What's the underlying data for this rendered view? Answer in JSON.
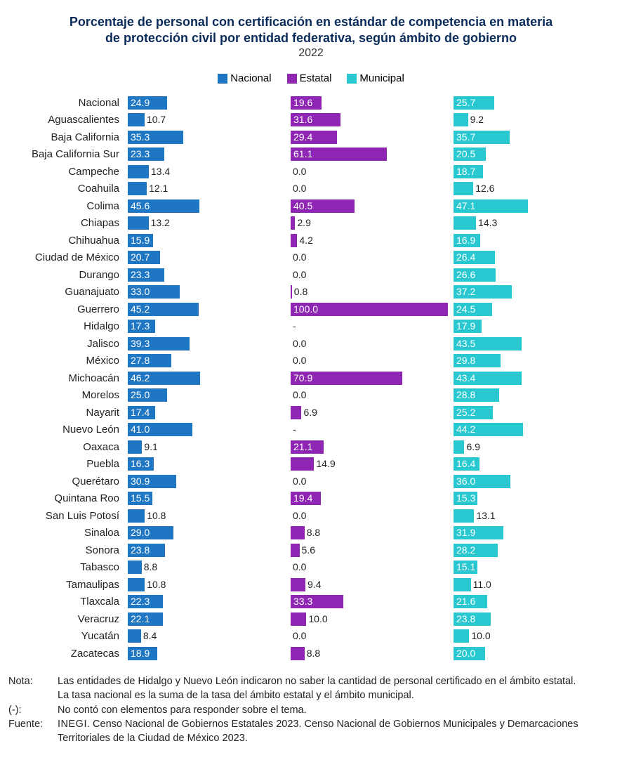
{
  "title_line1": "Porcentaje de personal con certificación en estándar de competencia en materia",
  "title_line2": "de protección civil por entidad federativa, según ámbito de gobierno",
  "year": "2022",
  "legend": {
    "nacional": "Nacional",
    "estatal": "Estatal",
    "municipal": "Municipal"
  },
  "colors": {
    "nacional": "#1f77c4",
    "estatal": "#8e26b3",
    "municipal": "#29c8d1",
    "text": "#222222",
    "title": "#0a2b5a",
    "background": "#ffffff"
  },
  "scale_max": 100,
  "label_inside_threshold": 15,
  "rows": [
    {
      "label": "Nacional",
      "nacional": 24.9,
      "estatal": 19.6,
      "municipal": 25.7
    },
    {
      "label": "Aguascalientes",
      "nacional": 10.7,
      "estatal": 31.6,
      "municipal": 9.2
    },
    {
      "label": "Baja California",
      "nacional": 35.3,
      "estatal": 29.4,
      "municipal": 35.7
    },
    {
      "label": "Baja California Sur",
      "nacional": 23.3,
      "estatal": 61.1,
      "municipal": 20.5
    },
    {
      "label": "Campeche",
      "nacional": 13.4,
      "estatal": 0.0,
      "municipal": 18.7
    },
    {
      "label": "Coahuila",
      "nacional": 12.1,
      "estatal": 0.0,
      "municipal": 12.6
    },
    {
      "label": "Colima",
      "nacional": 45.6,
      "estatal": 40.5,
      "municipal": 47.1
    },
    {
      "label": "Chiapas",
      "nacional": 13.2,
      "estatal": 2.9,
      "municipal": 14.3
    },
    {
      "label": "Chihuahua",
      "nacional": 15.9,
      "estatal": 4.2,
      "municipal": 16.9
    },
    {
      "label": "Ciudad de México",
      "nacional": 20.7,
      "estatal": 0.0,
      "municipal": 26.4
    },
    {
      "label": "Durango",
      "nacional": 23.3,
      "estatal": 0.0,
      "municipal": 26.6
    },
    {
      "label": "Guanajuato",
      "nacional": 33.0,
      "estatal": 0.8,
      "municipal": 37.2
    },
    {
      "label": "Guerrero",
      "nacional": 45.2,
      "estatal": 100.0,
      "municipal": 24.5
    },
    {
      "label": "Hidalgo",
      "nacional": 17.3,
      "estatal": null,
      "municipal": 17.9
    },
    {
      "label": "Jalisco",
      "nacional": 39.3,
      "estatal": 0.0,
      "municipal": 43.5
    },
    {
      "label": "México",
      "nacional": 27.8,
      "estatal": 0.0,
      "municipal": 29.8
    },
    {
      "label": "Michoacán",
      "nacional": 46.2,
      "estatal": 70.9,
      "municipal": 43.4
    },
    {
      "label": "Morelos",
      "nacional": 25.0,
      "estatal": 0.0,
      "municipal": 28.8
    },
    {
      "label": "Nayarit",
      "nacional": 17.4,
      "estatal": 6.9,
      "municipal": 25.2
    },
    {
      "label": "Nuevo León",
      "nacional": 41.0,
      "estatal": null,
      "municipal": 44.2
    },
    {
      "label": "Oaxaca",
      "nacional": 9.1,
      "estatal": 21.1,
      "municipal": 6.9
    },
    {
      "label": "Puebla",
      "nacional": 16.3,
      "estatal": 14.9,
      "municipal": 16.4
    },
    {
      "label": "Querétaro",
      "nacional": 30.9,
      "estatal": 0.0,
      "municipal": 36.0
    },
    {
      "label": "Quintana Roo",
      "nacional": 15.5,
      "estatal": 19.4,
      "municipal": 15.3
    },
    {
      "label": "San Luis Potosí",
      "nacional": 10.8,
      "estatal": 0.0,
      "municipal": 13.1
    },
    {
      "label": "Sinaloa",
      "nacional": 29.0,
      "estatal": 8.8,
      "municipal": 31.9
    },
    {
      "label": "Sonora",
      "nacional": 23.8,
      "estatal": 5.6,
      "municipal": 28.2
    },
    {
      "label": "Tabasco",
      "nacional": 8.8,
      "estatal": 0.0,
      "municipal": 15.1
    },
    {
      "label": "Tamaulipas",
      "nacional": 10.8,
      "estatal": 9.4,
      "municipal": 11.0
    },
    {
      "label": "Tlaxcala",
      "nacional": 22.3,
      "estatal": 33.3,
      "municipal": 21.6
    },
    {
      "label": "Veracruz",
      "nacional": 22.1,
      "estatal": 10.0,
      "municipal": 23.8
    },
    {
      "label": "Yucatán",
      "nacional": 8.4,
      "estatal": 0.0,
      "municipal": 10.0
    },
    {
      "label": "Zacatecas",
      "nacional": 18.9,
      "estatal": 8.8,
      "municipal": 20.0
    }
  ],
  "null_display": "-",
  "footer": {
    "nota_label": "Nota:",
    "nota_line1": "Las entidades de Hidalgo y Nuevo León indicaron no saber la cantidad de personal certificado en el ámbito estatal.",
    "nota_line2": "La tasa nacional es la suma de la tasa del ámbito estatal y el ámbito municipal.",
    "dash_label": "(-):",
    "dash_text": "No contó con elementos para responder sobre el tema.",
    "fuente_label": "Fuente:",
    "fuente_inegi": "INEGI",
    "fuente_text": ". Censo Nacional de Gobiernos Estatales 2023. Censo Nacional de Gobiernos Municipales y Demarcaciones Territoriales de la Ciudad de México 2023."
  }
}
